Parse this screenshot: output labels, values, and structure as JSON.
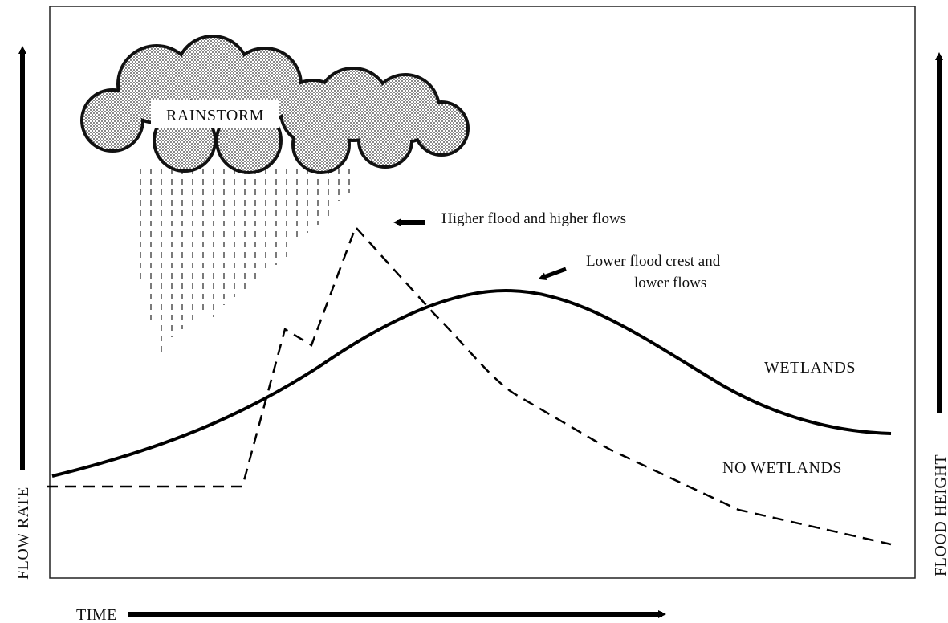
{
  "cloud_label": "RAINSTORM",
  "annotations": {
    "higher": "Higher flood and higher flows",
    "lower": [
      "Lower flood crest and",
      "lower flows"
    ]
  },
  "curves": {
    "wetlands": "WETLANDS",
    "no_wetlands": "NO WETLANDS"
  },
  "axes": {
    "left": "FLOW RATE",
    "right": "FLOOD HEIGHT",
    "bottom": "TIME"
  }
}
